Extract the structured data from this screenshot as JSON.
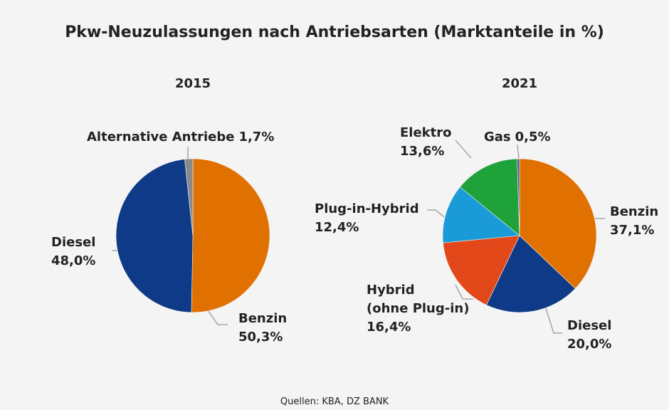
{
  "title": "Pkw-Neuzulassungen nach Antriebsarten (Marktanteile in %)",
  "source": "Quellen: KBA, DZ BANK",
  "chart_data": [
    {
      "type": "pie",
      "title": "2015",
      "categories": [
        "Benzin",
        "Diesel",
        "Alternative Antriebe"
      ],
      "values": [
        50.3,
        48.0,
        1.7
      ],
      "value_labels": [
        "50,3%",
        "48,0%",
        "1,7%"
      ],
      "colors": [
        "#e07000",
        "#0f3a87",
        "#8a8a8a"
      ]
    },
    {
      "type": "pie",
      "title": "2021",
      "categories": [
        "Benzin",
        "Diesel",
        "Hybrid (ohne Plug-in)",
        "Plug-in-Hybrid",
        "Elektro",
        "Gas"
      ],
      "values": [
        37.1,
        20.0,
        16.4,
        12.4,
        13.6,
        0.5
      ],
      "value_labels": [
        "37,1%",
        "20,0%",
        "16,4%",
        "12,4%",
        "13,6%",
        "0,5%"
      ],
      "colors": [
        "#e07000",
        "#0f3a87",
        "#e2481a",
        "#1a9ad6",
        "#1fa23a",
        "#4a5a8a"
      ]
    }
  ]
}
